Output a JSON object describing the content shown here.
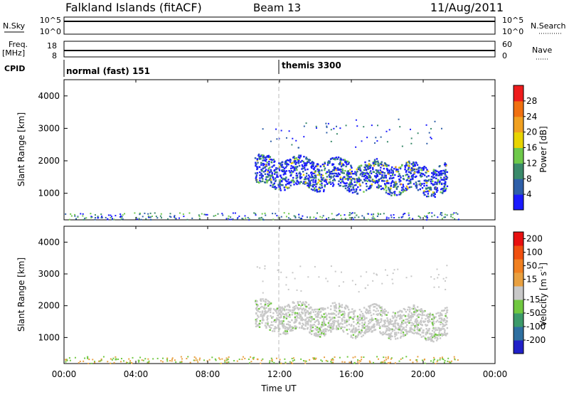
{
  "header": {
    "title": "Falkland Islands (fitACF)",
    "beam": "Beam 13",
    "date": "11/Aug/2011"
  },
  "strip": {
    "nsky_label": "N.Sky",
    "nsky_ticks": [
      "10^5",
      "10^0"
    ],
    "nsearch_label": "N.Search",
    "nsearch_ticks": [
      "10^5",
      "10^0"
    ],
    "freq_label": "Freq.",
    "freq_unit": "[MHz]",
    "freq_ticks": [
      "18",
      "8"
    ],
    "nave_label": "Nave",
    "nave_ticks": [
      "60",
      "0"
    ],
    "cpid_label": "CPID",
    "cpid_modes": [
      {
        "text": "normal (fast) 151",
        "start_hour": 0
      },
      {
        "text": "themis 3300",
        "start_hour": 12
      }
    ]
  },
  "chart_data": [
    {
      "type": "heatmap",
      "name": "power",
      "ylabel": "Slant Range [km]",
      "ylim": [
        180,
        4500
      ],
      "yticks": [
        1000,
        2000,
        3000,
        4000
      ],
      "xlim": [
        0,
        24
      ],
      "colorbar": {
        "label": "Power [dB]",
        "ticks": [
          "4",
          "8",
          "12",
          "16",
          "20",
          "24",
          "28"
        ],
        "colors": [
          "#1a1aff",
          "#2e5fa8",
          "#3a8a6a",
          "#6ec94a",
          "#e8d400",
          "#f0a020",
          "#f07010",
          "#ee1c1c"
        ]
      },
      "scatter_region": {
        "start_hour": 10.6,
        "end_hour": 21.3,
        "range_low_km": 1200,
        "range_high_km": 2200
      }
    },
    {
      "type": "heatmap",
      "name": "velocity",
      "ylabel": "Slant Range [km]",
      "ylim": [
        180,
        4500
      ],
      "yticks": [
        1000,
        2000,
        3000,
        4000
      ],
      "xlim": [
        0,
        24
      ],
      "colorbar": {
        "label_prefix": "Velocity [m s",
        "label_sup": "-1",
        "label_suffix": "]",
        "ticks": [
          "200",
          "100",
          "50",
          "15",
          "-15",
          "-50",
          "-100",
          "-200"
        ],
        "colors": [
          "#2020c8",
          "#2e6fa0",
          "#3c9a6a",
          "#70c840",
          "#c8c8c8",
          "#e8a040",
          "#f08020",
          "#f05010",
          "#e81010"
        ]
      },
      "scatter_region": {
        "start_hour": 10.6,
        "end_hour": 21.3,
        "range_low_km": 1200,
        "range_high_km": 2200
      }
    }
  ],
  "xaxis": {
    "label": "Time UT",
    "ticks": [
      {
        "hour": 0,
        "label": "00:00"
      },
      {
        "hour": 4,
        "label": "04:00"
      },
      {
        "hour": 8,
        "label": "08:00"
      },
      {
        "hour": 12,
        "label": "12:00"
      },
      {
        "hour": 16,
        "label": "16:00"
      },
      {
        "hour": 20,
        "label": "20:00"
      },
      {
        "hour": 24,
        "label": "00:00"
      }
    ]
  }
}
